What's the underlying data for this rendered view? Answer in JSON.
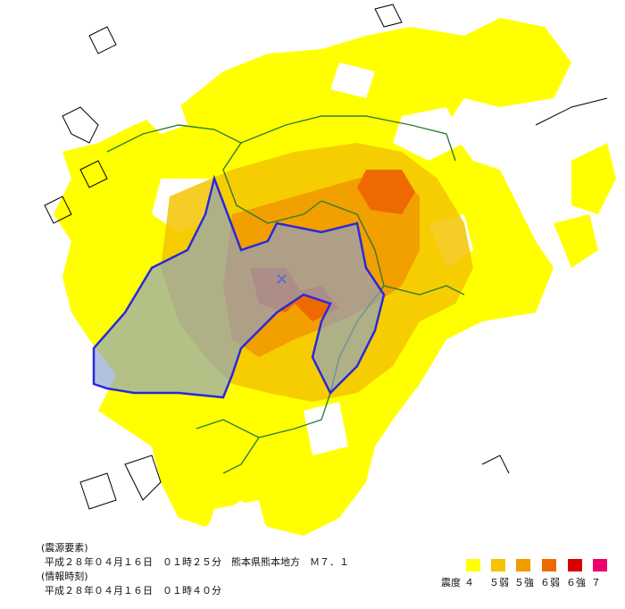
{
  "map": {
    "epicenter_marker": "×",
    "colors": {
      "sea": "#ffffff",
      "coast": "#000000",
      "land_base": "#ffff00",
      "pref_border": "#2e7d32",
      "highlight_border": "#2a2ad6",
      "highlight_fill": "#8a9fd0"
    }
  },
  "info": {
    "source_heading": "(震源要素)",
    "source_line": "平成２８年０４月１６日　０１時２５分　熊本県熊本地方　Ｍ７．１",
    "time_heading": "(情報時刻)",
    "time_line": "平成２８年０４月１６日　０１時４０分"
  },
  "legend": {
    "title": "震度",
    "items": [
      {
        "label": "４",
        "color": "#ffff00"
      },
      {
        "label": "５弱",
        "color": "#f5c400"
      },
      {
        "label": "５強",
        "color": "#f29a00"
      },
      {
        "label": "６弱",
        "color": "#ee6a00"
      },
      {
        "label": "６強",
        "color": "#d80000"
      },
      {
        "label": "７",
        "color": "#f0006a"
      }
    ]
  }
}
